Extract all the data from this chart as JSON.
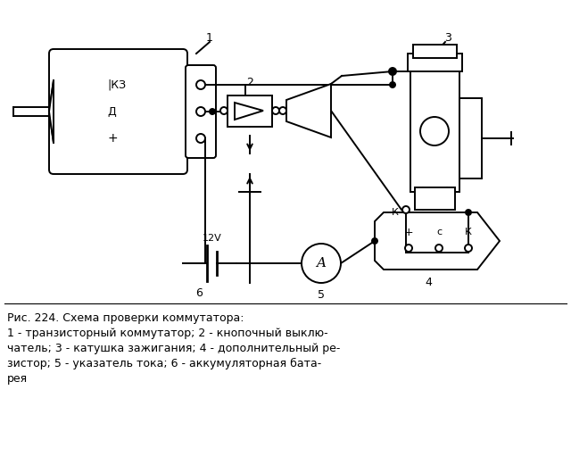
{
  "bg_color": "#ffffff",
  "line_color": "#000000",
  "fig_width": 6.4,
  "fig_height": 5.3,
  "caption_line1": "Рис. 224. Схема проверки коммутатора:",
  "caption_line2": "1 - транзисторный коммутатор; 2 - кнопочный выклю-",
  "caption_line3": "чатель; 3 - катушка зажигания; 4 - дополнительный ре-",
  "caption_line4": "зистор; 5 - указатель тока; 6 - аккумуляторная бата-",
  "caption_line5": "рея"
}
